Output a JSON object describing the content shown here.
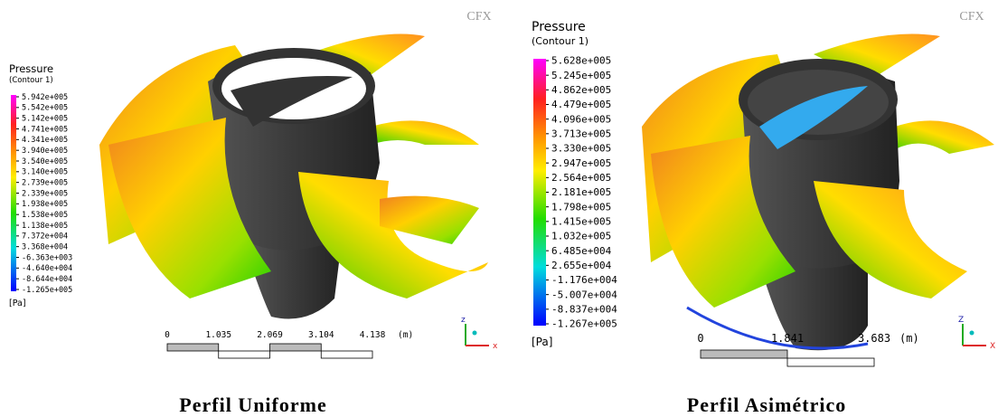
{
  "panels": [
    {
      "legend": {
        "title": "Pressure",
        "subtitle": "(Contour 1)",
        "labels": [
          "5.942e+005",
          "5.542e+005",
          "5.142e+005",
          "4.741e+005",
          "4.341e+005",
          "3.940e+005",
          "3.540e+005",
          "3.140e+005",
          "2.739e+005",
          "2.339e+005",
          "1.938e+005",
          "1.538e+005",
          "1.138e+005",
          "7.372e+004",
          "3.368e+004",
          "-6.363e+003",
          "-4.640e+004",
          "-8.644e+004",
          "-1.265e+005"
        ],
        "unit": "[Pa]"
      },
      "logo": "CFX",
      "scale": {
        "labels": [
          "0",
          "1.035",
          "2.069",
          "3.104",
          "4.138"
        ],
        "unit": "(m)"
      },
      "axes": [
        "z",
        "x"
      ],
      "caption": "Perfil Uniforme"
    },
    {
      "legend": {
        "title": "Pressure",
        "subtitle": "(Contour 1)",
        "labels": [
          "5.628e+005",
          "5.245e+005",
          "4.862e+005",
          "4.479e+005",
          "4.096e+005",
          "3.713e+005",
          "3.330e+005",
          "2.947e+005",
          "2.564e+005",
          "2.181e+005",
          "1.798e+005",
          "1.415e+005",
          "1.032e+005",
          "6.485e+004",
          "2.655e+004",
          "-1.176e+004",
          "-5.007e+004",
          "-8.837e+004",
          "-1.267e+005"
        ],
        "unit": "[Pa]"
      },
      "logo": "CFX",
      "scale": {
        "labels": [
          "0",
          "1.841",
          "3.683"
        ],
        "unit": "(m)"
      },
      "axes": [
        "Z",
        "X"
      ],
      "caption": "Perfil Asimétrico"
    }
  ]
}
